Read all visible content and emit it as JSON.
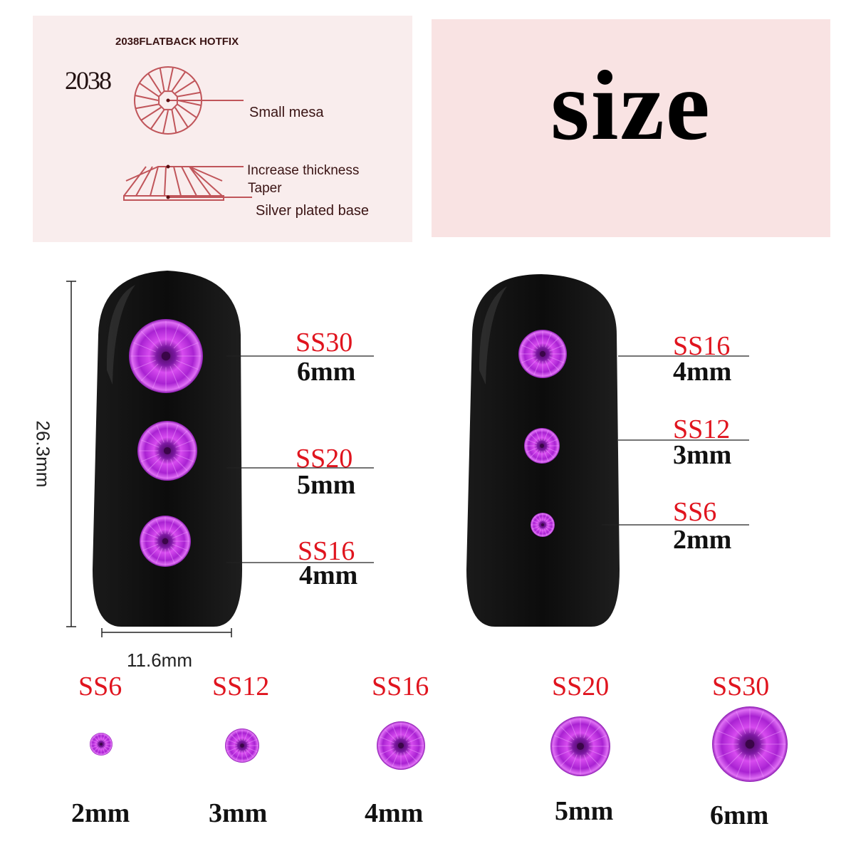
{
  "diagram_panel": {
    "header": "2038FLATBACK HOTFIX",
    "model": "2038",
    "labels": [
      "Small mesa",
      "Increase thickness",
      "Taper",
      "Silver plated base"
    ],
    "line_color": "#c0555a"
  },
  "title_panel": {
    "title": "size"
  },
  "nail_dimensions": {
    "height": "26.3mm",
    "width": "11.6mm"
  },
  "left_nail": [
    {
      "code": "SS30",
      "size": "6mm"
    },
    {
      "code": "SS20",
      "size": "5mm"
    },
    {
      "code": "SS16",
      "size": "4mm"
    }
  ],
  "right_nail": [
    {
      "code": "SS16",
      "size": "4mm"
    },
    {
      "code": "SS12",
      "size": "3mm"
    },
    {
      "code": "SS6",
      "size": "2mm"
    }
  ],
  "size_row": [
    {
      "code": "SS6",
      "size": "2mm"
    },
    {
      "code": "SS12",
      "size": "3mm"
    },
    {
      "code": "SS16",
      "size": "4mm"
    },
    {
      "code": "SS20",
      "size": "5mm"
    },
    {
      "code": "SS30",
      "size": "6mm"
    }
  ],
  "colors": {
    "code_label": "#e0141e",
    "gem": "#b52ad8",
    "nail": "#111111",
    "panel_bg": "#f9eded"
  }
}
